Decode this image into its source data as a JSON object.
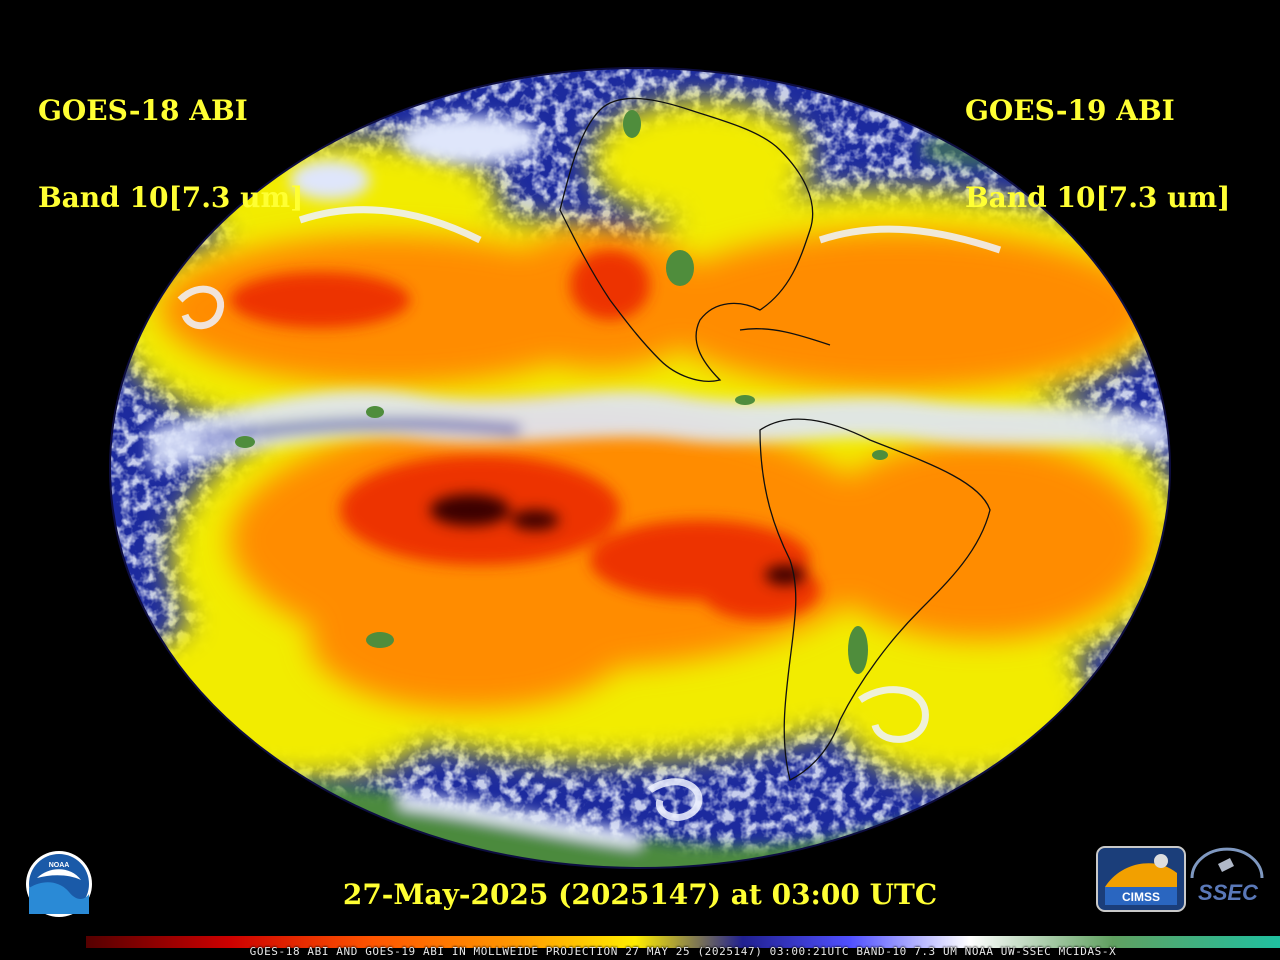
{
  "header": {
    "left_satellite": "GOES-18 ABI",
    "left_band": "Band 10[7.3 um]",
    "right_satellite": "GOES-19 ABI",
    "right_band": "Band 10[7.3 um]"
  },
  "timestamp": "27-May-2025 (2025147) at 03:00 UTC",
  "caption": "GOES-18 ABI AND GOES-19 ABI IN MOLLWEIDE PROJECTION 27 MAY 25 (2025147) 03:00:21UTC BAND-10 7.3 UM NOAA UW-SSEC MCIDAS-X",
  "logos": {
    "noaa": "NOAA",
    "cimss": "CIMSS",
    "ssec": "SSEC"
  },
  "colors": {
    "label_yellow": "#ffff33",
    "background": "#000000",
    "ocean_deep_blue": "#1c2a9e",
    "cloud_white": "#e8eefc",
    "moisture_yellow": "#f5f000",
    "dry_orange": "#ff8a00",
    "very_dry_red": "#e82200",
    "extreme_dry_dark": "#3a0000",
    "cold_cloud_green": "#4a8a3a"
  },
  "color_scale": [
    "#550000",
    "#cc0000",
    "#ff4400",
    "#ff8800",
    "#ffcc00",
    "#ffff00",
    "#2020a0",
    "#4040ff",
    "#ffffff",
    "#60a060",
    "#20c0a0"
  ]
}
